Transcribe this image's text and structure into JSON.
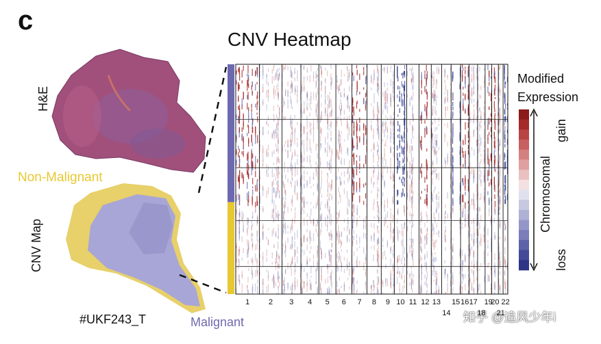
{
  "figure": {
    "panel_letter": "c",
    "title": "CNV Heatmap",
    "he_label": "H&E",
    "cnv_map_label": "CNV Map",
    "non_malignant_label": "Non-Malignant",
    "malignant_label": "Malignant",
    "sample_id": "#UKF243_T",
    "watermark": "知乎 @追风少年i"
  },
  "legend": {
    "title_line1": "Modified",
    "title_line2": "Expression",
    "gain_label": "gain",
    "axis_label": "Chromosomal",
    "loss_label": "loss",
    "colors": [
      "#8b1a1a",
      "#a52a2a",
      "#b84444",
      "#c76060",
      "#d48080",
      "#e0a0a0",
      "#ebc0c0",
      "#f4e0e0",
      "#e0e0ef",
      "#c8c8e0",
      "#aeb0d4",
      "#9496c8",
      "#7a7dba",
      "#5e62a8",
      "#444a98",
      "#2e3486"
    ]
  },
  "colors": {
    "gain": "#a52a2a",
    "loss": "#2e3a8c",
    "malignant": "#6d69b0",
    "non_malignant": "#e8c832",
    "tissue": "#a0507a"
  },
  "chart_data": {
    "type": "heatmap",
    "title": "CNV Heatmap",
    "x_axis": "chromosome",
    "chromosomes": [
      "1",
      "2",
      "3",
      "4",
      "5",
      "6",
      "7",
      "8",
      "9",
      "10",
      "11",
      "12",
      "13",
      "14",
      "15",
      "16",
      "17",
      "18",
      "19",
      "20",
      "21",
      "22"
    ],
    "chromosome_label_rows": {
      "top": [
        "1",
        "2",
        "3",
        "4",
        "5",
        "6",
        "7",
        "8",
        "9",
        "10",
        "11",
        "12",
        "13",
        "15",
        "16",
        "17",
        "19",
        "20",
        "22"
      ],
      "bottom": [
        "14",
        "18",
        "21"
      ]
    },
    "cluster_annotation": [
      {
        "group": "Malignant",
        "fraction": 0.6
      },
      {
        "group": "Non-Malignant",
        "fraction": 0.4
      }
    ],
    "chromosome_state": {
      "1": "gain",
      "2": "neutral",
      "3": "neutral",
      "4": "neutral",
      "5": "neutral",
      "6": "neutral",
      "7": "gain",
      "8": "neutral",
      "9": "neutral",
      "10": "loss",
      "11": "neutral",
      "12": "gain",
      "13": "neutral",
      "14": "neutral",
      "15": "loss",
      "16": "gain",
      "17": "neutral",
      "18": "neutral",
      "19": "gain",
      "20": "gain",
      "21": "neutral",
      "22": "loss"
    },
    "legend_scale": [
      "gain",
      "loss"
    ]
  }
}
